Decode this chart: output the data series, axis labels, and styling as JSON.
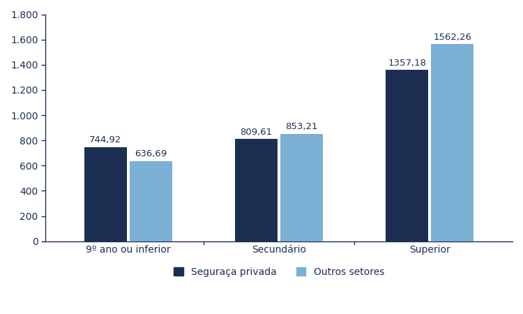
{
  "categories": [
    "9º ano ou inferior",
    "Secundário",
    "Superior"
  ],
  "series": {
    "Seguraça privada": [
      744.92,
      809.61,
      1357.18
    ],
    "Outros setores": [
      636.69,
      853.21,
      1562.26
    ]
  },
  "colors": {
    "Seguraça privada": "#1c2f52",
    "Outros setores": "#7bafd4"
  },
  "ylim": [
    0,
    1800
  ],
  "yticks": [
    0,
    200,
    400,
    600,
    800,
    1000,
    1200,
    1400,
    1600,
    1800
  ],
  "ytick_labels": [
    "0",
    "200",
    "400",
    "600",
    "800",
    "1.000",
    "1.200",
    "1.400",
    "1.600",
    "1.800"
  ],
  "bar_width": 0.28,
  "value_labels": {
    "Seguraça privada": [
      "744,92",
      "809,61",
      "1357,18"
    ],
    "Outros setores": [
      "636,69",
      "853,21",
      "1562,26"
    ]
  },
  "background_color": "#ffffff",
  "axis_color": "#1c2f52",
  "fontsize_ticks": 10,
  "fontsize_labels": 10,
  "fontsize_values": 9.5
}
